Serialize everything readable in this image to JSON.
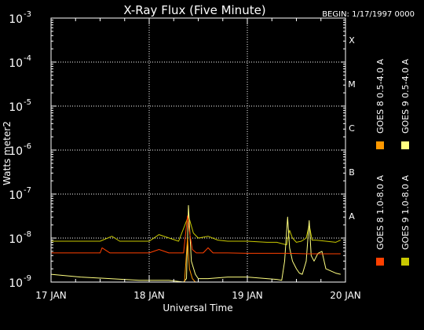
{
  "header": {
    "begin_label": "BEGIN: 1/17/1997 0000"
  },
  "chart_data": {
    "type": "line",
    "title": "X-Ray Flux (Five Minute)",
    "xlabel": "Universal Time",
    "ylabel": "Watts meter2",
    "y_scale": "log",
    "ylim": [
      1e-09,
      0.001
    ],
    "xlim": [
      0,
      3
    ],
    "x_units": "days since 17 JAN 0000 UT",
    "x_ticks": [
      {
        "value": 0,
        "label": "17 JAN"
      },
      {
        "value": 1,
        "label": "18 JAN"
      },
      {
        "value": 2,
        "label": "19 JAN"
      },
      {
        "value": 3,
        "label": "20 JAN"
      }
    ],
    "y_ticks": [
      {
        "exp": -9,
        "value": 1e-09
      },
      {
        "exp": -8,
        "value": 1e-08
      },
      {
        "exp": -7,
        "value": 1e-07
      },
      {
        "exp": -6,
        "value": 1e-06
      },
      {
        "exp": -5,
        "value": 1e-05
      },
      {
        "exp": -4,
        "value": 0.0001
      },
      {
        "exp": -3,
        "value": 0.001
      }
    ],
    "flare_classes": [
      {
        "label": "A",
        "value": 1e-08
      },
      {
        "label": "B",
        "value": 1e-07
      },
      {
        "label": "C",
        "value": 1e-06
      },
      {
        "label": "M",
        "value": 1e-05
      },
      {
        "label": "X",
        "value": 0.0001
      }
    ],
    "grid": true,
    "legend_placement": "right, vertical",
    "series": [
      {
        "name": "GOES 9 1.0-8.0 A",
        "color": "#c8c800",
        "x": [
          0,
          0.5,
          0.62,
          0.7,
          1.0,
          1.1,
          1.3,
          1.4,
          1.45,
          1.5,
          1.6,
          1.7,
          1.8,
          2.0,
          2.2,
          2.3,
          2.4,
          2.43,
          2.46,
          2.5,
          2.55,
          2.6,
          2.63,
          2.66,
          2.7,
          2.8,
          2.9,
          2.95
        ],
        "y": [
          8.5e-09,
          8.5e-09,
          1.1e-08,
          8.5e-09,
          8.5e-09,
          1.2e-08,
          8.5e-09,
          3.2e-08,
          1.3e-08,
          1e-08,
          1.1e-08,
          9e-09,
          8.5e-09,
          8.5e-09,
          8e-09,
          8e-09,
          7e-09,
          1.5e-08,
          1e-08,
          8e-09,
          8.5e-09,
          1e-08,
          2e-08,
          9e-09,
          9e-09,
          8.5e-09,
          8e-09,
          9e-09
        ]
      },
      {
        "name": "GOES 9 0.5-4.0 A",
        "color": "#ffff80",
        "x": [
          0,
          0.3,
          0.6,
          0.9,
          1.2,
          1.35,
          1.38,
          1.4,
          1.43,
          1.47,
          1.5,
          1.6,
          1.8,
          2.0,
          2.2,
          2.3,
          2.35,
          2.38,
          2.41,
          2.43,
          2.46,
          2.5,
          2.53,
          2.56,
          2.6,
          2.63,
          2.65,
          2.68,
          2.72,
          2.76,
          2.8,
          2.9,
          2.95
        ],
        "y": [
          1.5e-09,
          1.3e-09,
          1.2e-09,
          1.1e-09,
          1.1e-09,
          1e-09,
          1.2e-09,
          5.5e-08,
          3e-09,
          1.5e-09,
          1.2e-09,
          1.2e-09,
          1.3e-09,
          1.3e-09,
          1.2e-09,
          1.15e-09,
          1.1e-09,
          3e-09,
          3e-08,
          6e-09,
          3e-09,
          2e-09,
          1.6e-09,
          1.5e-09,
          3e-09,
          2.5e-08,
          4e-09,
          3e-09,
          4.5e-09,
          5e-09,
          2e-09,
          1.6e-09,
          1.5e-09
        ]
      },
      {
        "name": "GOES 8 1.0-8.0 A",
        "color": "#ff4000",
        "x": [
          0,
          0.5,
          0.52,
          0.6,
          1.0,
          1.1,
          1.2,
          1.35,
          1.39,
          1.41,
          1.44,
          1.48,
          1.55,
          1.6,
          1.65,
          1.8,
          2.0,
          2.4,
          2.6,
          2.7,
          2.95
        ],
        "y": [
          4.6e-09,
          4.6e-09,
          6e-09,
          4.6e-09,
          4.6e-09,
          5.5e-09,
          4.6e-09,
          4.6e-09,
          3.2e-08,
          1.4e-08,
          5.5e-09,
          4.6e-09,
          4.6e-09,
          6e-09,
          4.6e-09,
          4.6e-09,
          4.5e-09,
          4.5e-09,
          4.4e-09,
          4.4e-09,
          4.4e-09
        ]
      },
      {
        "name": "GOES 8 0.5-4.0 A",
        "color": "#ff9900",
        "x": [
          1.36,
          1.39,
          1.41,
          1.44,
          1.47
        ],
        "y": [
          1e-09,
          1e-08,
          2e-09,
          1.2e-09,
          1e-09
        ]
      }
    ]
  }
}
